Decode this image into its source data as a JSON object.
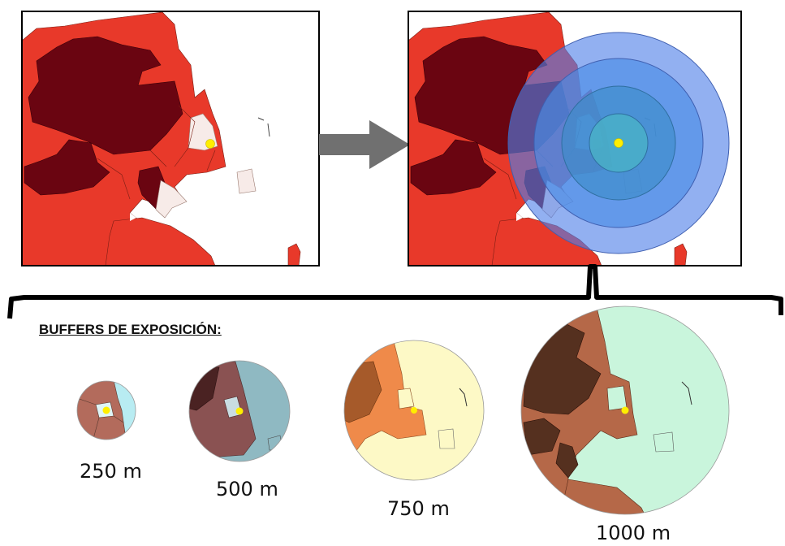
{
  "title": "BUFFERS DE EXPOSICIÓN:",
  "buffers": [
    {
      "label": "250 m",
      "color": "#b8ecf2"
    },
    {
      "label": "500 m",
      "color": "#8fb9c2"
    },
    {
      "label": "750 m",
      "color": "#fdf9c6"
    },
    {
      "label": "1000 m",
      "color": "#c9f5dc"
    }
  ],
  "colors": {
    "light": "#e8392a",
    "dark": "#6a0511",
    "pale": "#f7ebe8",
    "point": "#ffee00",
    "ring": "#4f7fe8",
    "arrow": "#707070"
  }
}
